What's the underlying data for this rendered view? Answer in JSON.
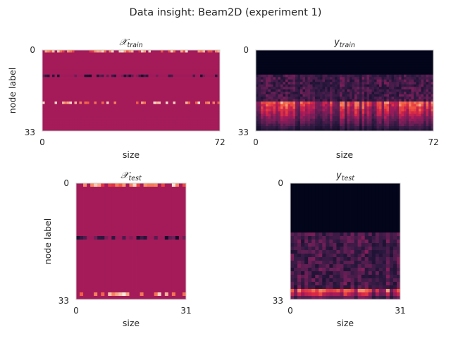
{
  "figure": {
    "title": "Data insight: Beam2D (experiment 1)"
  },
  "colors": {
    "x_base": "#cc1f49",
    "rocket_stops": [
      "#03051a",
      "#2f1a42",
      "#6b1f56",
      "#a11a5b",
      "#d92847",
      "#f0573f",
      "#f6926b",
      "#faebdd"
    ],
    "axis_frame": "#cccccc",
    "text": "#262626"
  },
  "chart_data": [
    {
      "id": "x-train",
      "type": "heatmap",
      "title": "𝒳train",
      "title_main": "𝒳",
      "title_sub": "train",
      "xlabel": "size",
      "ylabel": "node label",
      "xticks": [
        "0",
        "72"
      ],
      "yticks": [
        "0",
        "33"
      ],
      "n_cols": 72,
      "n_rows": 33,
      "rows": [
        {
          "row": 0,
          "pattern": "speckled-light"
        },
        {
          "row": 10,
          "pattern": "dark-speckled"
        },
        {
          "row": 21,
          "pattern": "light-speckled"
        }
      ],
      "base": "uniform-red"
    },
    {
      "id": "y-train",
      "type": "heatmap",
      "title": "𝑦train",
      "title_main": "y",
      "title_sub": "train",
      "xlabel": "size",
      "ylabel": "",
      "xticks": [
        "0",
        "72"
      ],
      "yticks": [
        "0",
        "33"
      ],
      "n_cols": 72,
      "n_rows": 33,
      "dark_rows_until": 10,
      "bright_band_start": 21
    },
    {
      "id": "x-test",
      "type": "heatmap",
      "title": "𝒳test",
      "title_main": "𝒳",
      "title_sub": "test",
      "xlabel": "size",
      "ylabel": "node label",
      "xticks": [
        "0",
        "31"
      ],
      "yticks": [
        "0",
        "33"
      ],
      "n_cols": 31,
      "n_rows": 33,
      "rows": [
        {
          "row": 0,
          "pattern": "speckled-light"
        },
        {
          "row": 15,
          "pattern": "dark-speckled"
        },
        {
          "row": 31,
          "pattern": "light-speckled"
        }
      ],
      "base": "uniform-red"
    },
    {
      "id": "y-test",
      "type": "heatmap",
      "title": "𝑦test",
      "title_main": "y",
      "title_sub": "test",
      "xlabel": "size",
      "ylabel": "",
      "xticks": [
        "0",
        "31"
      ],
      "yticks": [
        "0",
        "33"
      ],
      "n_cols": 31,
      "n_rows": 33,
      "dark_rows_until": 14,
      "bright_band_start": 30
    }
  ]
}
